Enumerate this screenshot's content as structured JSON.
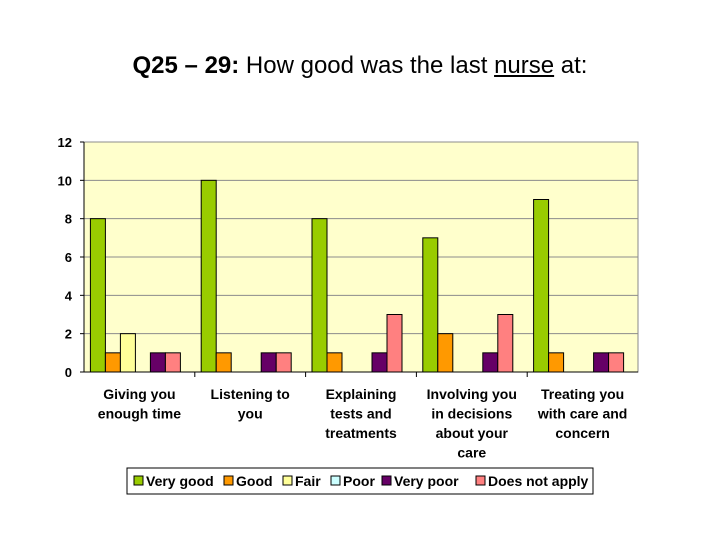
{
  "slide": {
    "title_prefix": "Q25 – 29:",
    "title_main": " How good was the last ",
    "title_underlined": "nurse",
    "title_suffix": " at:"
  },
  "chart_data": {
    "type": "bar",
    "title": "",
    "xlabel": "",
    "ylabel": "",
    "ylim": [
      0,
      12
    ],
    "yticks": [
      0,
      2,
      4,
      6,
      8,
      10,
      12
    ],
    "grid": true,
    "legend_position": "bottom",
    "plot_background": "#FFFFCC",
    "categories": [
      [
        "Giving you",
        "enough time"
      ],
      [
        "Listening to",
        "you"
      ],
      [
        "Explaining",
        "tests and",
        "treatments"
      ],
      [
        "Involving you",
        "in decisions",
        "about your",
        "care"
      ],
      [
        "Treating you",
        "with care and",
        "concern"
      ]
    ],
    "series": [
      {
        "name": "Very good",
        "color": "#99CC00",
        "values": [
          8,
          10,
          8,
          7,
          9
        ]
      },
      {
        "name": "Good",
        "color": "#FF9900",
        "values": [
          1,
          1,
          1,
          2,
          1
        ]
      },
      {
        "name": "Fair",
        "color": "#FFFF99",
        "values": [
          2,
          0,
          0,
          0,
          0
        ]
      },
      {
        "name": "Poor",
        "color": "#CCFFFF",
        "values": [
          0,
          0,
          0,
          0,
          0
        ]
      },
      {
        "name": "Very poor",
        "color": "#660066",
        "values": [
          1,
          1,
          1,
          1,
          1
        ]
      },
      {
        "name": "Does not apply",
        "color": "#FF8080",
        "values": [
          1,
          1,
          3,
          3,
          1
        ]
      }
    ]
  }
}
